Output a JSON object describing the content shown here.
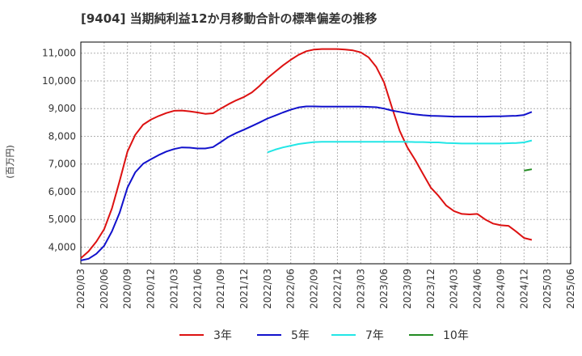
{
  "chart_data": {
    "type": "line",
    "title": "[9404]  当期純利益12か月移動合計の標準偏差の推移",
    "ylabel": "(百万円)",
    "xlabel": "",
    "ylim": [
      3400,
      11400
    ],
    "yticks": [
      4000,
      5000,
      6000,
      7000,
      8000,
      9000,
      10000,
      11000
    ],
    "ytick_labels": [
      "4,000",
      "5,000",
      "6,000",
      "7,000",
      "8,000",
      "9,000",
      "10,000",
      "11,000"
    ],
    "xlim": [
      0,
      63
    ],
    "xticks": [
      0,
      3,
      6,
      9,
      12,
      15,
      18,
      21,
      24,
      27,
      30,
      33,
      36,
      39,
      42,
      45,
      48,
      51,
      54,
      57,
      60,
      63
    ],
    "xtick_labels": [
      "2020/03",
      "2020/06",
      "2020/09",
      "2020/12",
      "2021/03",
      "2021/06",
      "2021/09",
      "2021/12",
      "2022/03",
      "2022/06",
      "2022/09",
      "2022/12",
      "2023/03",
      "2023/06",
      "2023/09",
      "2023/12",
      "2024/03",
      "2024/06",
      "2024/09",
      "2024/12",
      "2025/03",
      "2025/06"
    ],
    "grid": true,
    "legend_position": "bottom",
    "series": [
      {
        "name": "3年",
        "color": "#dd1111",
        "start_index": 0,
        "values": [
          3600,
          3850,
          4200,
          4650,
          5400,
          6400,
          7450,
          8050,
          8420,
          8600,
          8730,
          8840,
          8920,
          8930,
          8900,
          8860,
          8810,
          8830,
          9000,
          9160,
          9300,
          9420,
          9580,
          9820,
          10100,
          10330,
          10560,
          10760,
          10940,
          11070,
          11130,
          11150,
          11150,
          11150,
          11130,
          11100,
          11030,
          10850,
          10500,
          9950,
          9050,
          8200,
          7600,
          7150,
          6650,
          6150,
          5850,
          5500,
          5300,
          5200,
          5180,
          5200,
          5000,
          4850,
          4790,
          4770,
          4560,
          4330,
          4260
        ]
      },
      {
        "name": "5年",
        "color": "#1111cc",
        "start_index": 0,
        "values": [
          3520,
          3580,
          3760,
          4050,
          4570,
          5250,
          6150,
          6700,
          7010,
          7170,
          7320,
          7450,
          7540,
          7600,
          7590,
          7560,
          7560,
          7610,
          7790,
          7980,
          8120,
          8240,
          8370,
          8500,
          8640,
          8750,
          8860,
          8960,
          9040,
          9080,
          9080,
          9070,
          9070,
          9070,
          9070,
          9070,
          9070,
          9060,
          9050,
          9000,
          8930,
          8880,
          8830,
          8790,
          8760,
          8740,
          8730,
          8720,
          8710,
          8710,
          8710,
          8710,
          8710,
          8720,
          8720,
          8730,
          8740,
          8770,
          8880
        ]
      },
      {
        "name": "7年",
        "color": "#22e6e6",
        "start_index": 24,
        "values": [
          7420,
          7520,
          7600,
          7660,
          7720,
          7760,
          7790,
          7800,
          7800,
          7800,
          7800,
          7800,
          7800,
          7800,
          7800,
          7800,
          7800,
          7800,
          7800,
          7790,
          7790,
          7780,
          7780,
          7760,
          7750,
          7740,
          7740,
          7740,
          7740,
          7740,
          7740,
          7750,
          7760,
          7780,
          7850
        ]
      },
      {
        "name": "10年",
        "color": "#228b22",
        "start_index": 57,
        "values": [
          6760,
          6810
        ]
      }
    ]
  }
}
